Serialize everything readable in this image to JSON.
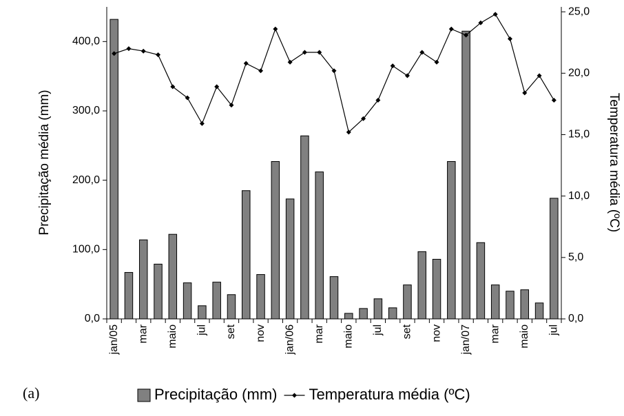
{
  "chart_data": {
    "type": "bar_line",
    "annotation": "(a)",
    "y_label": "Precipitação média (mm)",
    "y2_label": "Temperatura média (ºC)",
    "categories": [
      "jan/05",
      null,
      "mar",
      null,
      "maio",
      null,
      "jul",
      null,
      "set",
      null,
      "nov",
      null,
      "jan/06",
      null,
      "mar",
      null,
      "maio",
      null,
      "jul",
      null,
      "set",
      null,
      "nov",
      null,
      "jan/07",
      null,
      "mar",
      null,
      "maio",
      null,
      "jul"
    ],
    "series": [
      {
        "name": "Precipitação (mm)",
        "color": "#808080",
        "type": "bar",
        "values": [
          432,
          67,
          114,
          79,
          122,
          52,
          19,
          53,
          35,
          185,
          64,
          227,
          173,
          264,
          212,
          61,
          8,
          15,
          29,
          16,
          49,
          97,
          86,
          227,
          415,
          110,
          49,
          40,
          42,
          23,
          174
        ]
      },
      {
        "name": "Temperatura média (ºC)",
        "color": "#000000",
        "type": "line",
        "axis": "y2",
        "values": [
          21.6,
          22.0,
          21.8,
          21.5,
          18.9,
          18.0,
          15.9,
          18.9,
          17.4,
          20.8,
          20.2,
          23.6,
          20.9,
          21.7,
          21.7,
          20.2,
          15.2,
          16.3,
          17.8,
          20.6,
          19.8,
          21.7,
          20.9,
          23.6,
          23.1,
          24.1,
          24.8,
          22.8,
          18.4,
          19.8,
          17.8
        ]
      }
    ],
    "ylim": [
      0,
      450
    ],
    "yticks": [
      {
        "value": 0,
        "label": "0,0"
      },
      {
        "value": 100,
        "label": "100,0"
      },
      {
        "value": 200,
        "label": "200,0"
      },
      {
        "value": 300,
        "label": "300,0"
      },
      {
        "value": 400,
        "label": "400,0"
      }
    ],
    "y2lim": [
      0,
      25.4
    ],
    "y2ticks": [
      {
        "value": 0,
        "label": "0,0"
      },
      {
        "value": 5,
        "label": "5,0"
      },
      {
        "value": 10,
        "label": "10,0"
      },
      {
        "value": 15,
        "label": "15,0"
      },
      {
        "value": 20,
        "label": "20,0"
      },
      {
        "value": 25,
        "label": "25,0"
      }
    ],
    "legend": "bottom"
  }
}
